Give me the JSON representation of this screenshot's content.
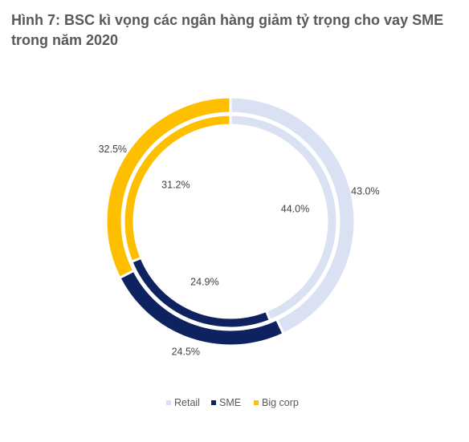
{
  "title": "Hình 7: BSC kì vọng các ngân hàng giảm tỷ trọng cho vay SME trong năm 2020",
  "chart_data": {
    "type": "donut",
    "categories": [
      "Retail",
      "SME",
      "Big corp"
    ],
    "colors": [
      "#dae1f3",
      "#0e2260",
      "#fdbf00"
    ],
    "rings": [
      {
        "ring": "outer",
        "values": [
          43.0,
          24.5,
          32.5
        ],
        "labels": [
          "43.0%",
          "24.5%",
          "32.5%"
        ]
      },
      {
        "ring": "inner",
        "values": [
          44.0,
          24.9,
          31.2
        ],
        "labels": [
          "44.0%",
          "24.9%",
          "31.2%"
        ]
      }
    ],
    "legend": [
      "Retail",
      "SME",
      "Big corp"
    ],
    "legend_position": "bottom"
  }
}
